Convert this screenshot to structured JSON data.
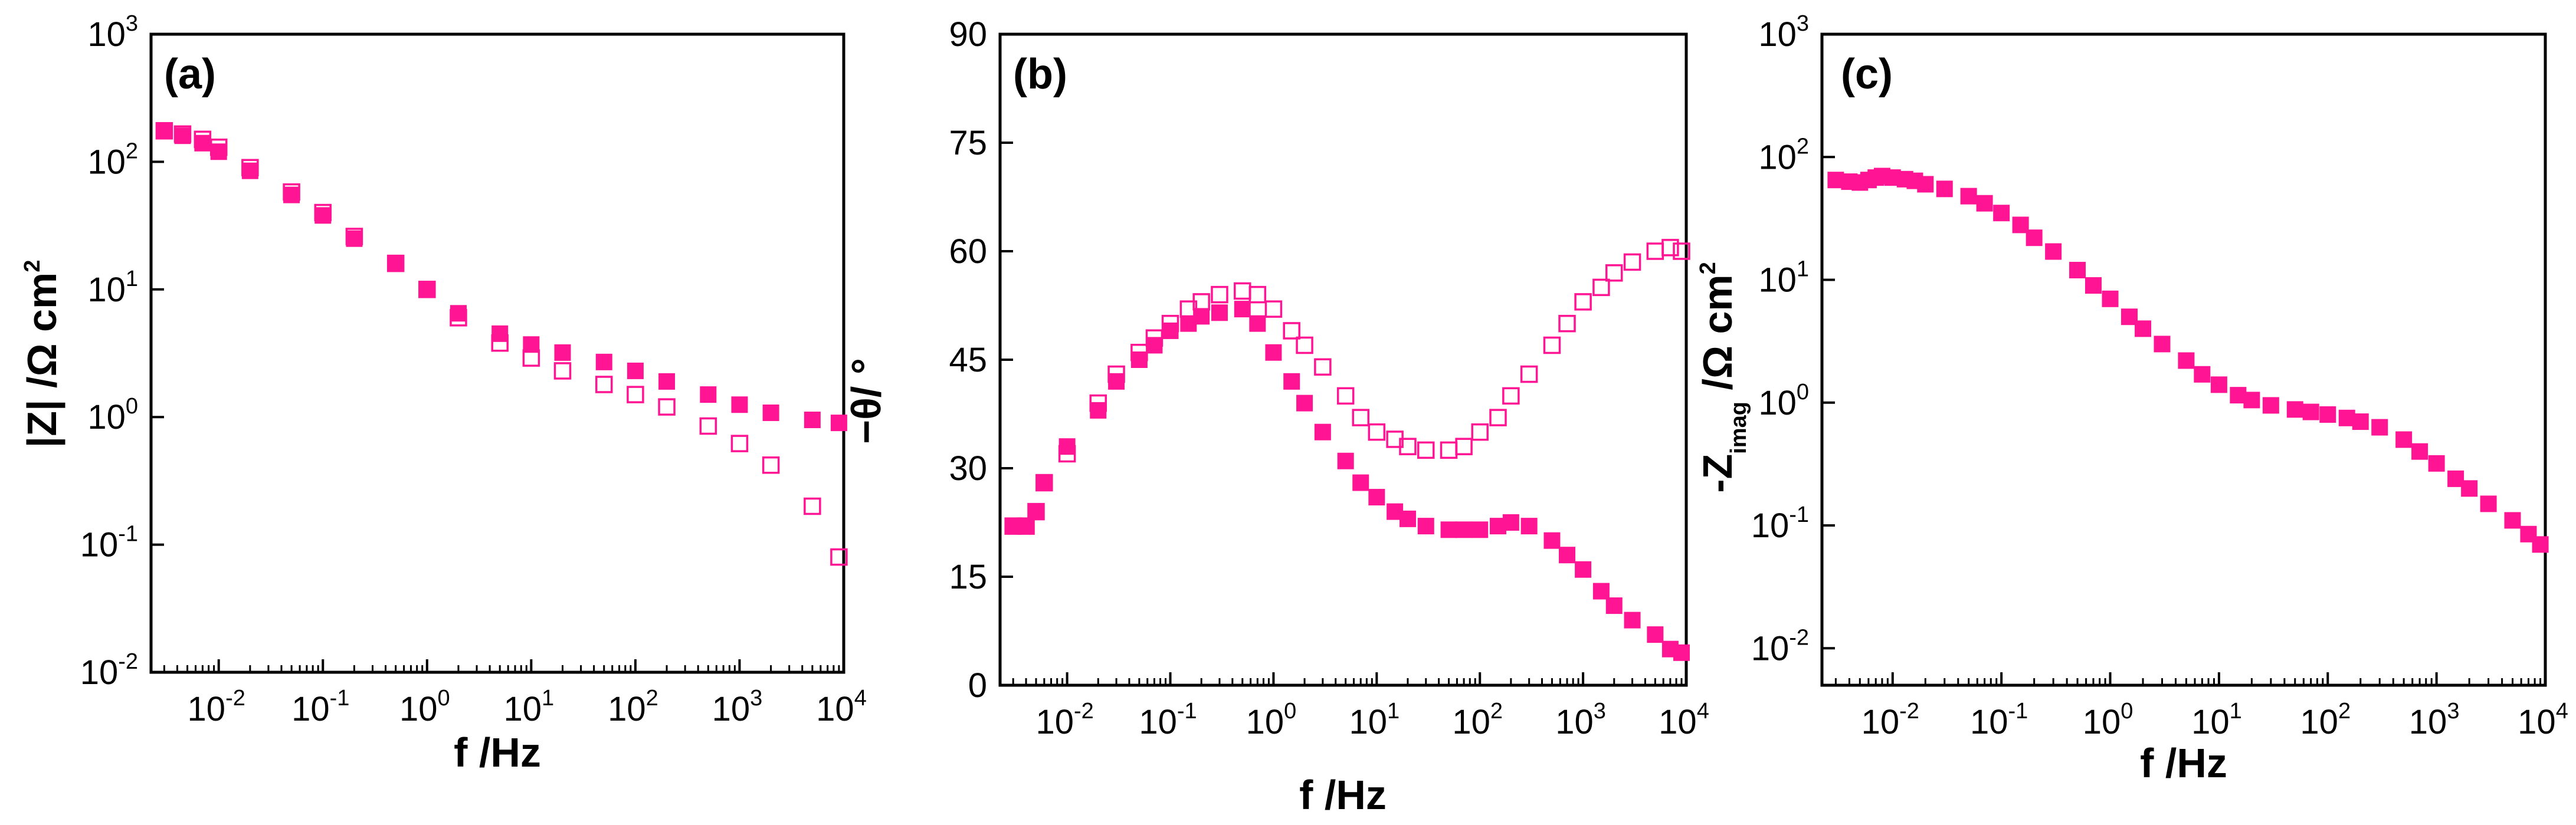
{
  "colors": {
    "series": "#ff1493",
    "axis": "#000000",
    "background": "#ffffff"
  },
  "chart_data": [
    {
      "id": "a",
      "panel_label": "(a)",
      "type": "scatter",
      "xscale": "log",
      "yscale": "log",
      "xlabel": "f /Hz",
      "ylabel": "|Z| /Ω cm²",
      "ylabel_parts": {
        "main": "|Z| /Ω cm",
        "sup": "2"
      },
      "xlim": [
        0.00224,
        10000
      ],
      "ylim": [
        0.01,
        1000
      ],
      "xticks": [
        {
          "base": "10",
          "exp": "-2",
          "v": 0.01
        },
        {
          "base": "10",
          "exp": "-1",
          "v": 0.1
        },
        {
          "base": "10",
          "exp": "0",
          "v": 1
        },
        {
          "base": "10",
          "exp": "1",
          "v": 10
        },
        {
          "base": "10",
          "exp": "2",
          "v": 100
        },
        {
          "base": "10",
          "exp": "3",
          "v": 1000
        },
        {
          "base": "10",
          "exp": "4",
          "v": 10000
        }
      ],
      "yticks": [
        {
          "base": "10",
          "exp": "-2",
          "v": 0.01
        },
        {
          "base": "10",
          "exp": "-1",
          "v": 0.1
        },
        {
          "base": "10",
          "exp": "0",
          "v": 1
        },
        {
          "base": "10",
          "exp": "1",
          "v": 10
        },
        {
          "base": "10",
          "exp": "2",
          "v": 100
        },
        {
          "base": "10",
          "exp": "3",
          "v": 1000
        }
      ],
      "series": [
        {
          "name": "filled squares",
          "marker": "filled-square",
          "points": [
            [
              0.003,
              175
            ],
            [
              0.0045,
              160
            ],
            [
              0.007,
              140
            ],
            [
              0.01,
              120
            ],
            [
              0.02,
              85
            ],
            [
              0.05,
              55
            ],
            [
              0.1,
              38
            ],
            [
              0.2,
              25
            ],
            [
              0.5,
              16
            ],
            [
              1,
              10
            ],
            [
              2,
              6.5
            ],
            [
              5,
              4.5
            ],
            [
              10,
              3.7
            ],
            [
              20,
              3.2
            ],
            [
              50,
              2.7
            ],
            [
              100,
              2.3
            ],
            [
              200,
              1.9
            ],
            [
              500,
              1.5
            ],
            [
              1000,
              1.25
            ],
            [
              2000,
              1.08
            ],
            [
              5000,
              0.95
            ],
            [
              9000,
              0.9
            ]
          ]
        },
        {
          "name": "open squares",
          "marker": "open-square",
          "points": [
            [
              0.003,
              175
            ],
            [
              0.0045,
              165
            ],
            [
              0.007,
              150
            ],
            [
              0.01,
              130
            ],
            [
              0.02,
              90
            ],
            [
              0.05,
              58
            ],
            [
              0.1,
              40
            ],
            [
              0.2,
              26
            ],
            [
              0.5,
              16
            ],
            [
              1,
              10
            ],
            [
              2,
              6
            ],
            [
              5,
              3.8
            ],
            [
              10,
              2.9
            ],
            [
              20,
              2.3
            ],
            [
              50,
              1.8
            ],
            [
              100,
              1.5
            ],
            [
              200,
              1.2
            ],
            [
              500,
              0.85
            ],
            [
              1000,
              0.62
            ],
            [
              2000,
              0.42
            ],
            [
              5000,
              0.2
            ],
            [
              9000,
              0.08
            ]
          ]
        }
      ]
    },
    {
      "id": "b",
      "panel_label": "(b)",
      "type": "scatter",
      "xscale": "log",
      "yscale": "linear",
      "xlabel": "f /Hz",
      "ylabel": "−θ/ °",
      "xlim": [
        0.00224,
        10000
      ],
      "ylim": [
        0,
        90
      ],
      "xticks": [
        {
          "base": "10",
          "exp": "-2",
          "v": 0.01
        },
        {
          "base": "10",
          "exp": "-1",
          "v": 0.1
        },
        {
          "base": "10",
          "exp": "0",
          "v": 1
        },
        {
          "base": "10",
          "exp": "1",
          "v": 10
        },
        {
          "base": "10",
          "exp": "2",
          "v": 100
        },
        {
          "base": "10",
          "exp": "3",
          "v": 1000
        },
        {
          "base": "10",
          "exp": "4",
          "v": 10000
        }
      ],
      "yticks": [
        {
          "label": "0",
          "v": 0
        },
        {
          "label": "15",
          "v": 15
        },
        {
          "label": "30",
          "v": 30
        },
        {
          "label": "45",
          "v": 45
        },
        {
          "label": "60",
          "v": 60
        },
        {
          "label": "75",
          "v": 75
        },
        {
          "label": "90",
          "v": 90
        }
      ],
      "series": [
        {
          "name": "filled squares",
          "marker": "filled-square",
          "points": [
            [
              0.003,
              22
            ],
            [
              0.004,
              22
            ],
            [
              0.005,
              24
            ],
            [
              0.006,
              28
            ],
            [
              0.01,
              33
            ],
            [
              0.02,
              38
            ],
            [
              0.03,
              42
            ],
            [
              0.05,
              45
            ],
            [
              0.07,
              47
            ],
            [
              0.1,
              49
            ],
            [
              0.15,
              50
            ],
            [
              0.2,
              51
            ],
            [
              0.3,
              51.5
            ],
            [
              0.5,
              52
            ],
            [
              0.7,
              50
            ],
            [
              1,
              46
            ],
            [
              1.5,
              42
            ],
            [
              2,
              39
            ],
            [
              3,
              35
            ],
            [
              5,
              31
            ],
            [
              7,
              28
            ],
            [
              10,
              26
            ],
            [
              15,
              24
            ],
            [
              20,
              23
            ],
            [
              30,
              22
            ],
            [
              50,
              21.5
            ],
            [
              70,
              21.5
            ],
            [
              100,
              21.5
            ],
            [
              150,
              22
            ],
            [
              200,
              22.5
            ],
            [
              300,
              22
            ],
            [
              500,
              20
            ],
            [
              700,
              18
            ],
            [
              1000,
              16
            ],
            [
              1500,
              13
            ],
            [
              2000,
              11
            ],
            [
              3000,
              9
            ],
            [
              5000,
              7
            ],
            [
              7000,
              5
            ],
            [
              9000,
              4.5
            ]
          ]
        },
        {
          "name": "open squares",
          "marker": "open-square",
          "points": [
            [
              0.003,
              22
            ],
            [
              0.004,
              22
            ],
            [
              0.005,
              24
            ],
            [
              0.006,
              28
            ],
            [
              0.01,
              32
            ],
            [
              0.02,
              39
            ],
            [
              0.03,
              43
            ],
            [
              0.05,
              46
            ],
            [
              0.07,
              48
            ],
            [
              0.1,
              50
            ],
            [
              0.15,
              52
            ],
            [
              0.2,
              53
            ],
            [
              0.3,
              54
            ],
            [
              0.5,
              54.5
            ],
            [
              0.7,
              54
            ],
            [
              1,
              52
            ],
            [
              1.5,
              49
            ],
            [
              2,
              47
            ],
            [
              3,
              44
            ],
            [
              5,
              40
            ],
            [
              7,
              37
            ],
            [
              10,
              35
            ],
            [
              15,
              34
            ],
            [
              20,
              33
            ],
            [
              30,
              32.5
            ],
            [
              50,
              32.5
            ],
            [
              70,
              33
            ],
            [
              100,
              35
            ],
            [
              150,
              37
            ],
            [
              200,
              40
            ],
            [
              300,
              43
            ],
            [
              500,
              47
            ],
            [
              700,
              50
            ],
            [
              1000,
              53
            ],
            [
              1500,
              55
            ],
            [
              2000,
              57
            ],
            [
              3000,
              58.5
            ],
            [
              5000,
              60
            ],
            [
              7000,
              60.5
            ],
            [
              9000,
              60
            ]
          ]
        }
      ]
    },
    {
      "id": "c",
      "panel_label": "(c)",
      "type": "scatter",
      "xscale": "log",
      "yscale": "log",
      "xlabel": "f /Hz",
      "ylabel": "-Z_imag /Ω cm²",
      "ylabel_parts": {
        "main": "-Z",
        "sub": "imag",
        "rest": " /Ω cm",
        "sup": "2"
      },
      "xlim": [
        0.00224,
        10000
      ],
      "ylim": [
        0.005,
        1000
      ],
      "xticks": [
        {
          "base": "10",
          "exp": "-2",
          "v": 0.01
        },
        {
          "base": "10",
          "exp": "-1",
          "v": 0.1
        },
        {
          "base": "10",
          "exp": "0",
          "v": 1
        },
        {
          "base": "10",
          "exp": "1",
          "v": 10
        },
        {
          "base": "10",
          "exp": "2",
          "v": 100
        },
        {
          "base": "10",
          "exp": "3",
          "v": 1000
        },
        {
          "base": "10",
          "exp": "4",
          "v": 10000
        }
      ],
      "yticks": [
        {
          "base": "10",
          "exp": "-2",
          "v": 0.01
        },
        {
          "base": "10",
          "exp": "-1",
          "v": 0.1
        },
        {
          "base": "10",
          "exp": "0",
          "v": 1
        },
        {
          "base": "10",
          "exp": "1",
          "v": 10
        },
        {
          "base": "10",
          "exp": "2",
          "v": 100
        },
        {
          "base": "10",
          "exp": "3",
          "v": 1000
        }
      ],
      "series": [
        {
          "name": "filled squares",
          "marker": "filled-square",
          "points": [
            [
              0.003,
              65
            ],
            [
              0.004,
              63
            ],
            [
              0.005,
              62
            ],
            [
              0.006,
              65
            ],
            [
              0.007,
              68
            ],
            [
              0.008,
              70
            ],
            [
              0.01,
              68
            ],
            [
              0.013,
              66
            ],
            [
              0.016,
              64
            ],
            [
              0.02,
              60
            ],
            [
              0.03,
              55
            ],
            [
              0.05,
              48
            ],
            [
              0.07,
              42
            ],
            [
              0.1,
              35
            ],
            [
              0.15,
              28
            ],
            [
              0.2,
              22
            ],
            [
              0.3,
              17
            ],
            [
              0.5,
              12
            ],
            [
              0.7,
              9
            ],
            [
              1,
              7
            ],
            [
              1.5,
              5
            ],
            [
              2,
              4
            ],
            [
              3,
              3
            ],
            [
              5,
              2.2
            ],
            [
              7,
              1.7
            ],
            [
              10,
              1.4
            ],
            [
              15,
              1.15
            ],
            [
              20,
              1.05
            ],
            [
              30,
              0.95
            ],
            [
              50,
              0.88
            ],
            [
              70,
              0.84
            ],
            [
              100,
              0.8
            ],
            [
              150,
              0.75
            ],
            [
              200,
              0.7
            ],
            [
              300,
              0.63
            ],
            [
              500,
              0.5
            ],
            [
              700,
              0.4
            ],
            [
              1000,
              0.32
            ],
            [
              1500,
              0.24
            ],
            [
              2000,
              0.2
            ],
            [
              3000,
              0.15
            ],
            [
              5000,
              0.11
            ],
            [
              7000,
              0.085
            ],
            [
              9000,
              0.07
            ]
          ]
        }
      ]
    }
  ]
}
